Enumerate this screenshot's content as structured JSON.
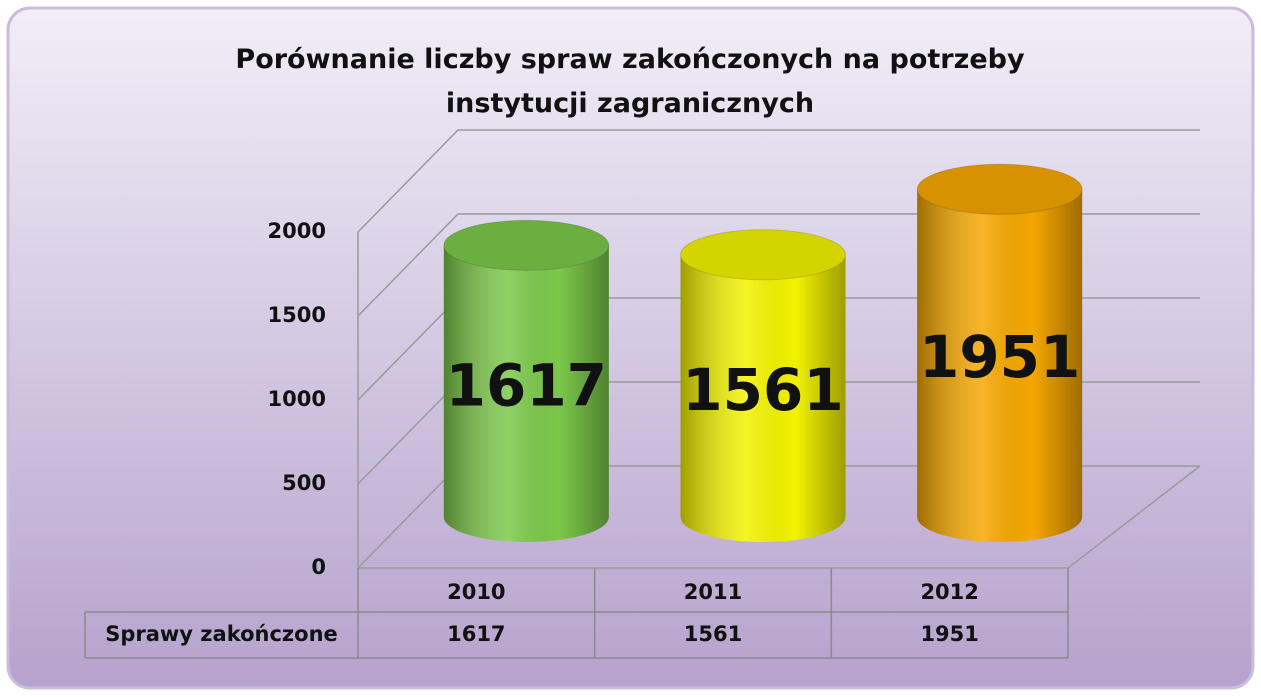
{
  "chart_data": {
    "type": "bar3d",
    "title": "Porównanie liczby spraw zakończonych na potrzeby instytucji zagranicznych",
    "categories": [
      "2010",
      "2011",
      "2012"
    ],
    "series": [
      {
        "name": "Sprawy zakończone",
        "values": [
          1617,
          1561,
          1951
        ],
        "colors": [
          "#7cc84a",
          "#f2f200",
          "#f5a700"
        ]
      }
    ],
    "ylim": [
      0,
      2000
    ],
    "yticks": [
      0,
      500,
      1000,
      1500,
      2000
    ],
    "grid": true,
    "data_table": true
  }
}
